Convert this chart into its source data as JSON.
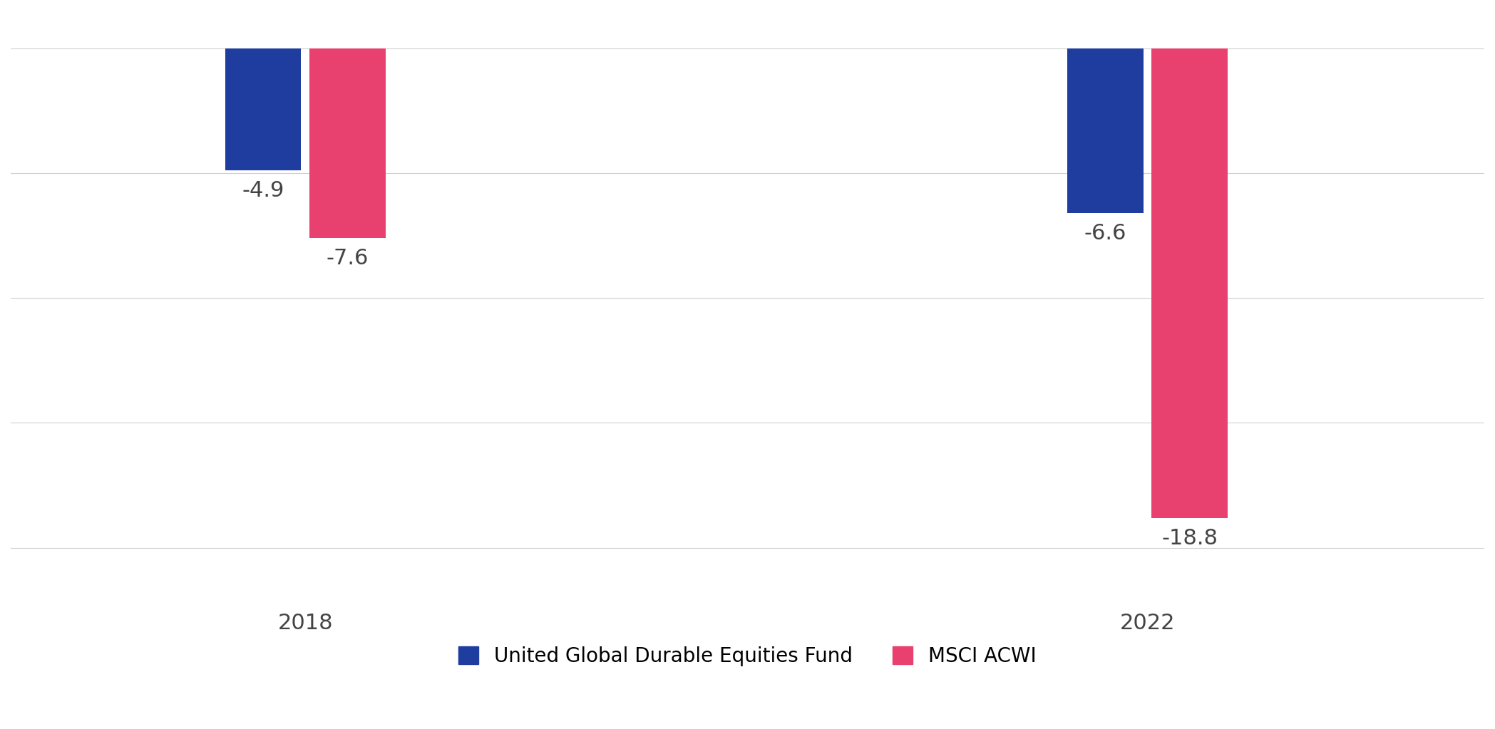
{
  "years": [
    "2018",
    "2022"
  ],
  "fund_values": [
    -4.9,
    -6.6
  ],
  "index_values": [
    -7.6,
    -18.8
  ],
  "fund_color": "#1f3d9e",
  "index_color": "#e8416f",
  "fund_label": "United Global Durable Equities Fund",
  "index_label": "MSCI ACWI",
  "ylim": [
    -22,
    1.5
  ],
  "background_color": "#ffffff",
  "grid_color": "#d0d0d0",
  "bar_width": 0.18,
  "bar_gap": 0.02,
  "group_positions": [
    1.0,
    3.0
  ],
  "tick_fontsize": 22,
  "legend_fontsize": 20,
  "value_fontsize": 22,
  "yticks": [
    0,
    -5,
    -10,
    -15,
    -20
  ],
  "xlim": [
    0.3,
    3.8
  ]
}
